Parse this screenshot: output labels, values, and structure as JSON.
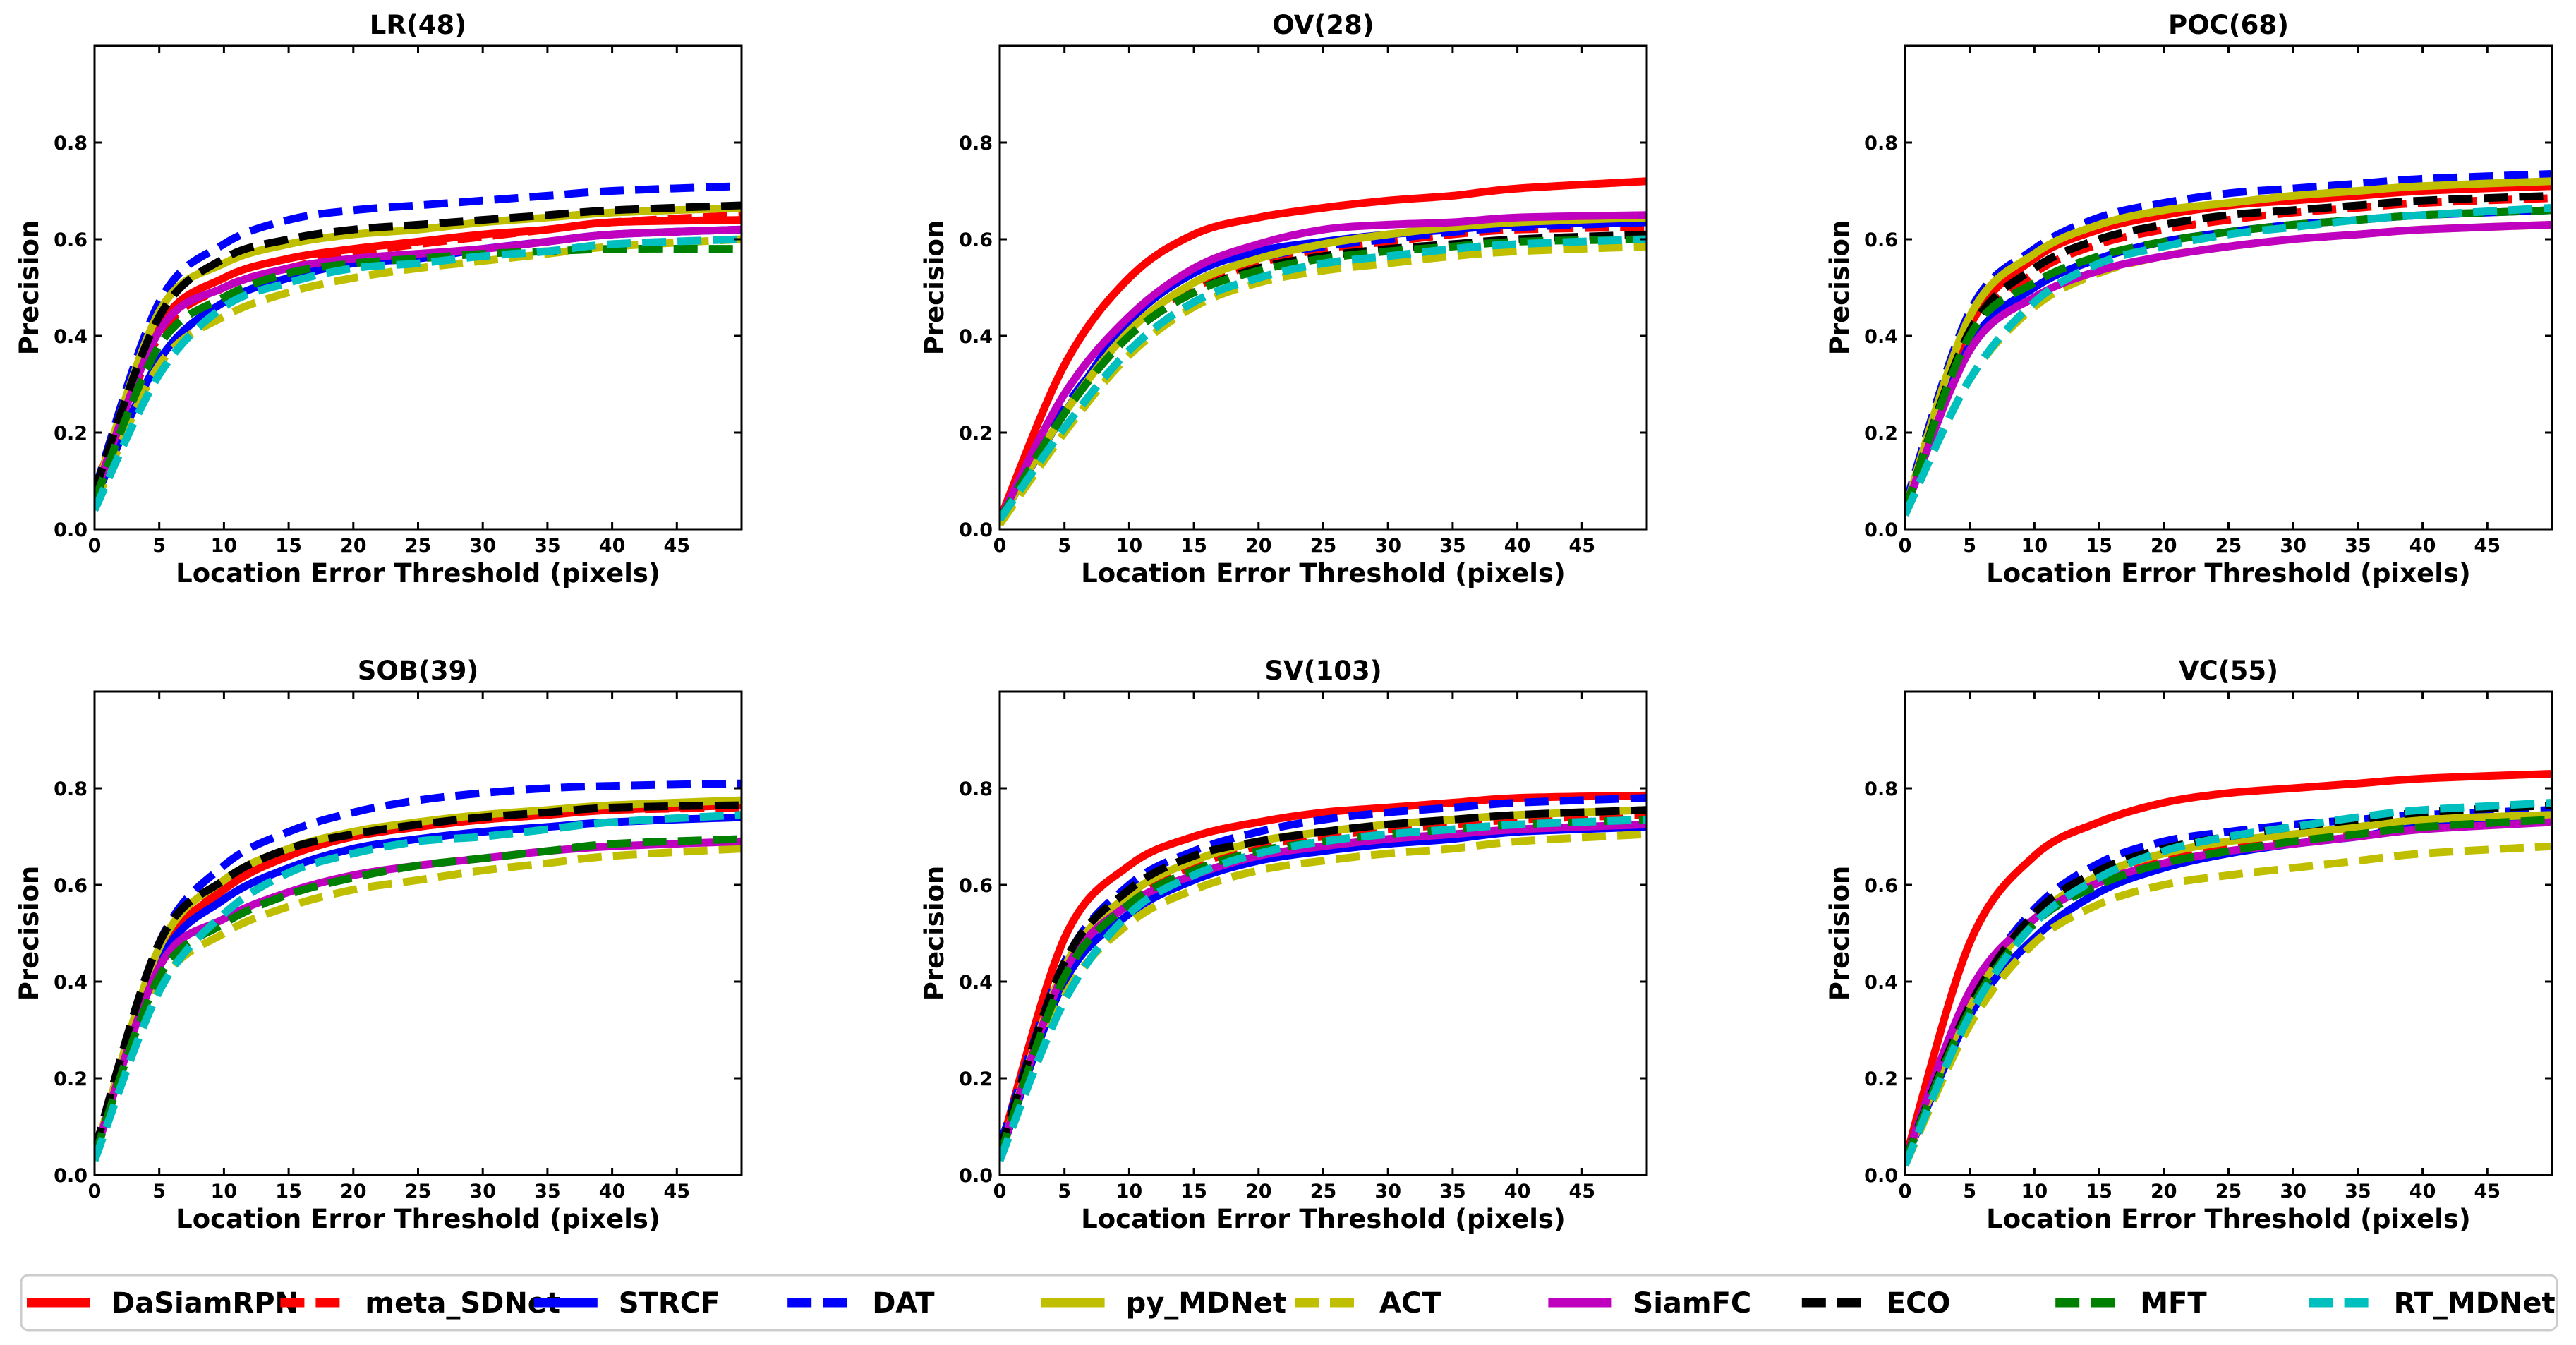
{
  "chart_data": [
    {
      "type": "line",
      "title": "LR(48)",
      "xlabel": "Location Error Threshold (pixels)",
      "ylabel": "Precision",
      "xlim": [
        0,
        50
      ],
      "ylim": [
        0,
        1
      ],
      "xticks": [
        0,
        5,
        10,
        15,
        20,
        25,
        30,
        35,
        40,
        45
      ],
      "yticks": [
        0.0,
        0.2,
        0.4,
        0.6,
        0.8
      ],
      "series": [
        {
          "name": "DaSiamRPN",
          "values": [
            0.08,
            0.42,
            0.52,
            0.56,
            0.58,
            0.595,
            0.61,
            0.62,
            0.635,
            0.64
          ]
        },
        {
          "name": "meta_SDNet",
          "values": [
            0.07,
            0.4,
            0.5,
            0.54,
            0.57,
            0.59,
            0.605,
            0.62,
            0.635,
            0.65
          ]
        },
        {
          "name": "STRCF",
          "values": [
            0.06,
            0.35,
            0.47,
            0.52,
            0.55,
            0.56,
            0.58,
            0.595,
            0.61,
            0.62
          ]
        },
        {
          "name": "DAT",
          "values": [
            0.08,
            0.47,
            0.59,
            0.64,
            0.66,
            0.67,
            0.68,
            0.69,
            0.7,
            0.71
          ]
        },
        {
          "name": "py_MDNet",
          "values": [
            0.07,
            0.45,
            0.55,
            0.59,
            0.61,
            0.62,
            0.635,
            0.645,
            0.655,
            0.665
          ]
        },
        {
          "name": "ACT",
          "values": [
            0.05,
            0.34,
            0.44,
            0.49,
            0.52,
            0.54,
            0.555,
            0.57,
            0.585,
            0.6
          ]
        },
        {
          "name": "SiamFC",
          "values": [
            0.07,
            0.41,
            0.5,
            0.54,
            0.56,
            0.57,
            0.58,
            0.595,
            0.61,
            0.62
          ]
        },
        {
          "name": "ECO",
          "values": [
            0.08,
            0.44,
            0.56,
            0.6,
            0.62,
            0.63,
            0.64,
            0.65,
            0.66,
            0.67
          ]
        },
        {
          "name": "MFT",
          "values": [
            0.06,
            0.38,
            0.48,
            0.53,
            0.55,
            0.56,
            0.57,
            0.575,
            0.58,
            0.58
          ]
        },
        {
          "name": "RT_MDNet",
          "values": [
            0.04,
            0.32,
            0.46,
            0.51,
            0.54,
            0.55,
            0.565,
            0.575,
            0.59,
            0.6
          ]
        }
      ]
    },
    {
      "type": "line",
      "title": "OV(28)",
      "xlabel": "Location Error Threshold (pixels)",
      "ylabel": "Precision",
      "xlim": [
        0,
        50
      ],
      "ylim": [
        0,
        1
      ],
      "xticks": [
        0,
        5,
        10,
        15,
        20,
        25,
        30,
        35,
        40,
        45
      ],
      "yticks": [
        0.0,
        0.2,
        0.4,
        0.6,
        0.8
      ],
      "series": [
        {
          "name": "DaSiamRPN",
          "values": [
            0.02,
            0.34,
            0.52,
            0.61,
            0.645,
            0.665,
            0.68,
            0.69,
            0.705,
            0.72
          ]
        },
        {
          "name": "meta_SDNet",
          "values": [
            0.02,
            0.24,
            0.41,
            0.5,
            0.55,
            0.58,
            0.595,
            0.61,
            0.62,
            0.625
          ]
        },
        {
          "name": "STRCF",
          "values": [
            0.02,
            0.24,
            0.43,
            0.53,
            0.575,
            0.595,
            0.61,
            0.62,
            0.63,
            0.635
          ]
        },
        {
          "name": "DAT",
          "values": [
            0.02,
            0.25,
            0.41,
            0.51,
            0.56,
            0.585,
            0.6,
            0.615,
            0.625,
            0.635
          ]
        },
        {
          "name": "py_MDNet",
          "values": [
            0.02,
            0.24,
            0.41,
            0.51,
            0.56,
            0.59,
            0.61,
            0.625,
            0.635,
            0.645
          ]
        },
        {
          "name": "ACT",
          "values": [
            0.01,
            0.2,
            0.36,
            0.46,
            0.51,
            0.535,
            0.55,
            0.565,
            0.575,
            0.585
          ]
        },
        {
          "name": "SiamFC",
          "values": [
            0.02,
            0.28,
            0.44,
            0.54,
            0.59,
            0.62,
            0.63,
            0.635,
            0.645,
            0.65
          ]
        },
        {
          "name": "ECO",
          "values": [
            0.02,
            0.24,
            0.4,
            0.49,
            0.54,
            0.565,
            0.58,
            0.59,
            0.6,
            0.61
          ]
        },
        {
          "name": "MFT",
          "values": [
            0.02,
            0.24,
            0.4,
            0.49,
            0.535,
            0.56,
            0.575,
            0.585,
            0.595,
            0.6
          ]
        },
        {
          "name": "RT_MDNet",
          "values": [
            0.02,
            0.21,
            0.37,
            0.47,
            0.52,
            0.55,
            0.565,
            0.58,
            0.59,
            0.6
          ]
        }
      ]
    },
    {
      "type": "line",
      "title": "POC(68)",
      "xlabel": "Location Error Threshold (pixels)",
      "ylabel": "Precision",
      "xlim": [
        0,
        50
      ],
      "ylim": [
        0,
        1
      ],
      "xticks": [
        0,
        5,
        10,
        15,
        20,
        25,
        30,
        35,
        40,
        45
      ],
      "yticks": [
        0.0,
        0.2,
        0.4,
        0.6,
        0.8
      ],
      "series": [
        {
          "name": "DaSiamRPN",
          "values": [
            0.04,
            0.42,
            0.56,
            0.62,
            0.65,
            0.67,
            0.68,
            0.69,
            0.7,
            0.71
          ]
        },
        {
          "name": "meta_SDNet",
          "values": [
            0.04,
            0.4,
            0.53,
            0.59,
            0.62,
            0.64,
            0.655,
            0.665,
            0.675,
            0.685
          ]
        },
        {
          "name": "STRCF",
          "values": [
            0.04,
            0.38,
            0.5,
            0.56,
            0.595,
            0.615,
            0.63,
            0.64,
            0.65,
            0.66
          ]
        },
        {
          "name": "DAT",
          "values": [
            0.05,
            0.45,
            0.58,
            0.645,
            0.675,
            0.695,
            0.705,
            0.715,
            0.725,
            0.735
          ]
        },
        {
          "name": "py_MDNet",
          "values": [
            0.04,
            0.44,
            0.57,
            0.63,
            0.66,
            0.675,
            0.69,
            0.7,
            0.71,
            0.72
          ]
        },
        {
          "name": "ACT",
          "values": [
            0.03,
            0.31,
            0.46,
            0.53,
            0.565,
            0.585,
            0.6,
            0.61,
            0.62,
            0.63
          ]
        },
        {
          "name": "SiamFC",
          "values": [
            0.04,
            0.37,
            0.48,
            0.535,
            0.565,
            0.585,
            0.6,
            0.61,
            0.62,
            0.63
          ]
        },
        {
          "name": "ECO",
          "values": [
            0.04,
            0.41,
            0.54,
            0.6,
            0.63,
            0.65,
            0.66,
            0.67,
            0.68,
            0.69
          ]
        },
        {
          "name": "MFT",
          "values": [
            0.04,
            0.4,
            0.51,
            0.565,
            0.595,
            0.615,
            0.63,
            0.64,
            0.65,
            0.66
          ]
        },
        {
          "name": "RT_MDNet",
          "values": [
            0.03,
            0.31,
            0.47,
            0.55,
            0.585,
            0.61,
            0.625,
            0.64,
            0.65,
            0.665
          ]
        }
      ]
    },
    {
      "type": "line",
      "title": "SOB(39)",
      "xlabel": "Location Error Threshold (pixels)",
      "ylabel": "Precision",
      "xlim": [
        0,
        50
      ],
      "ylim": [
        0,
        1
      ],
      "xticks": [
        0,
        5,
        10,
        15,
        20,
        25,
        30,
        35,
        40,
        45
      ],
      "yticks": [
        0.0,
        0.2,
        0.4,
        0.6,
        0.8
      ],
      "series": [
        {
          "name": "DaSiamRPN",
          "values": [
            0.04,
            0.45,
            0.59,
            0.66,
            0.7,
            0.72,
            0.735,
            0.745,
            0.755,
            0.765
          ]
        },
        {
          "name": "meta_SDNet",
          "values": [
            0.04,
            0.46,
            0.6,
            0.665,
            0.7,
            0.72,
            0.735,
            0.745,
            0.755,
            0.76
          ]
        },
        {
          "name": "STRCF",
          "values": [
            0.04,
            0.44,
            0.57,
            0.635,
            0.675,
            0.695,
            0.71,
            0.72,
            0.73,
            0.74
          ]
        },
        {
          "name": "DAT",
          "values": [
            0.05,
            0.48,
            0.64,
            0.71,
            0.75,
            0.775,
            0.79,
            0.8,
            0.805,
            0.81
          ]
        },
        {
          "name": "py_MDNet",
          "values": [
            0.04,
            0.47,
            0.61,
            0.675,
            0.71,
            0.73,
            0.745,
            0.755,
            0.765,
            0.775
          ]
        },
        {
          "name": "ACT",
          "values": [
            0.03,
            0.39,
            0.5,
            0.555,
            0.59,
            0.61,
            0.63,
            0.645,
            0.66,
            0.675
          ]
        },
        {
          "name": "SiamFC",
          "values": [
            0.04,
            0.43,
            0.53,
            0.585,
            0.62,
            0.64,
            0.655,
            0.67,
            0.68,
            0.69
          ]
        },
        {
          "name": "ECO",
          "values": [
            0.05,
            0.48,
            0.61,
            0.675,
            0.705,
            0.725,
            0.74,
            0.75,
            0.76,
            0.765
          ]
        },
        {
          "name": "MFT",
          "values": [
            0.04,
            0.41,
            0.52,
            0.58,
            0.615,
            0.64,
            0.655,
            0.67,
            0.685,
            0.695
          ]
        },
        {
          "name": "RT_MDNet",
          "values": [
            0.03,
            0.38,
            0.54,
            0.625,
            0.665,
            0.69,
            0.7,
            0.715,
            0.73,
            0.745
          ]
        }
      ]
    },
    {
      "type": "line",
      "title": "SV(103)",
      "xlabel": "Location Error Threshold (pixels)",
      "ylabel": "Precision",
      "xlim": [
        0,
        50
      ],
      "ylim": [
        0,
        1
      ],
      "xticks": [
        0,
        5,
        10,
        15,
        20,
        25,
        30,
        35,
        40,
        45
      ],
      "yticks": [
        0.0,
        0.2,
        0.4,
        0.6,
        0.8
      ],
      "series": [
        {
          "name": "DaSiamRPN",
          "values": [
            0.05,
            0.49,
            0.64,
            0.7,
            0.73,
            0.75,
            0.76,
            0.77,
            0.78,
            0.785
          ]
        },
        {
          "name": "meta_SDNet",
          "values": [
            0.04,
            0.42,
            0.57,
            0.64,
            0.68,
            0.7,
            0.715,
            0.725,
            0.735,
            0.745
          ]
        },
        {
          "name": "STRCF",
          "values": [
            0.04,
            0.4,
            0.54,
            0.61,
            0.65,
            0.67,
            0.685,
            0.695,
            0.71,
            0.72
          ]
        },
        {
          "name": "DAT",
          "values": [
            0.06,
            0.44,
            0.6,
            0.67,
            0.71,
            0.735,
            0.75,
            0.76,
            0.77,
            0.78
          ]
        },
        {
          "name": "py_MDNet",
          "values": [
            0.04,
            0.43,
            0.58,
            0.65,
            0.69,
            0.71,
            0.725,
            0.735,
            0.745,
            0.755
          ]
        },
        {
          "name": "ACT",
          "values": [
            0.03,
            0.37,
            0.52,
            0.59,
            0.63,
            0.65,
            0.665,
            0.675,
            0.69,
            0.705
          ]
        },
        {
          "name": "SiamFC",
          "values": [
            0.04,
            0.42,
            0.56,
            0.62,
            0.66,
            0.68,
            0.695,
            0.705,
            0.715,
            0.725
          ]
        },
        {
          "name": "ECO",
          "values": [
            0.05,
            0.44,
            0.59,
            0.66,
            0.69,
            0.71,
            0.725,
            0.735,
            0.745,
            0.755
          ]
        },
        {
          "name": "MFT",
          "values": [
            0.04,
            0.41,
            0.56,
            0.63,
            0.67,
            0.69,
            0.705,
            0.715,
            0.725,
            0.735
          ]
        },
        {
          "name": "RT_MDNet",
          "values": [
            0.03,
            0.36,
            0.54,
            0.62,
            0.665,
            0.69,
            0.705,
            0.715,
            0.725,
            0.735
          ]
        }
      ]
    },
    {
      "type": "line",
      "title": "VC(55)",
      "xlabel": "Location Error Threshold (pixels)",
      "ylabel": "Precision",
      "xlim": [
        0,
        50
      ],
      "ylim": [
        0,
        1
      ],
      "xticks": [
        0,
        5,
        10,
        15,
        20,
        25,
        30,
        35,
        40,
        45
      ],
      "yticks": [
        0.0,
        0.2,
        0.4,
        0.6,
        0.8
      ],
      "series": [
        {
          "name": "DaSiamRPN",
          "values": [
            0.03,
            0.48,
            0.66,
            0.73,
            0.77,
            0.79,
            0.8,
            0.81,
            0.82,
            0.83
          ]
        },
        {
          "name": "meta_SDNet",
          "values": [
            0.03,
            0.34,
            0.52,
            0.61,
            0.65,
            0.675,
            0.69,
            0.71,
            0.725,
            0.74
          ]
        },
        {
          "name": "STRCF",
          "values": [
            0.03,
            0.33,
            0.49,
            0.585,
            0.635,
            0.665,
            0.685,
            0.7,
            0.72,
            0.735
          ]
        },
        {
          "name": "DAT",
          "values": [
            0.03,
            0.36,
            0.55,
            0.645,
            0.69,
            0.71,
            0.725,
            0.735,
            0.745,
            0.755
          ]
        },
        {
          "name": "py_MDNet",
          "values": [
            0.03,
            0.35,
            0.53,
            0.62,
            0.665,
            0.69,
            0.705,
            0.72,
            0.735,
            0.745
          ]
        },
        {
          "name": "ACT",
          "values": [
            0.02,
            0.31,
            0.48,
            0.56,
            0.6,
            0.62,
            0.635,
            0.65,
            0.665,
            0.68
          ]
        },
        {
          "name": "SiamFC",
          "values": [
            0.03,
            0.38,
            0.53,
            0.605,
            0.645,
            0.67,
            0.685,
            0.7,
            0.715,
            0.73
          ]
        },
        {
          "name": "ECO",
          "values": [
            0.03,
            0.35,
            0.54,
            0.63,
            0.675,
            0.7,
            0.72,
            0.735,
            0.75,
            0.765
          ]
        },
        {
          "name": "MFT",
          "values": [
            0.03,
            0.34,
            0.52,
            0.6,
            0.645,
            0.67,
            0.69,
            0.705,
            0.72,
            0.735
          ]
        },
        {
          "name": "RT_MDNet",
          "values": [
            0.02,
            0.33,
            0.52,
            0.615,
            0.67,
            0.7,
            0.72,
            0.74,
            0.755,
            0.77
          ]
        }
      ]
    }
  ],
  "legend": {
    "placement": "bottom",
    "items": [
      {
        "name": "DaSiamRPN",
        "color": "#ff0000",
        "style": "solid"
      },
      {
        "name": "meta_SDNet",
        "color": "#ff0000",
        "style": "dashed"
      },
      {
        "name": "STRCF",
        "color": "#0000ff",
        "style": "solid"
      },
      {
        "name": "DAT",
        "color": "#0000ff",
        "style": "dashed"
      },
      {
        "name": "py_MDNet",
        "color": "#bfbf00",
        "style": "solid"
      },
      {
        "name": "ACT",
        "color": "#bfbf00",
        "style": "dashed"
      },
      {
        "name": "SiamFC",
        "color": "#bf00bf",
        "style": "solid"
      },
      {
        "name": "ECO",
        "color": "#000000",
        "style": "dashed"
      },
      {
        "name": "MFT",
        "color": "#008000",
        "style": "dashed"
      },
      {
        "name": "RT_MDNet",
        "color": "#00bfbf",
        "style": "dashed"
      }
    ]
  }
}
